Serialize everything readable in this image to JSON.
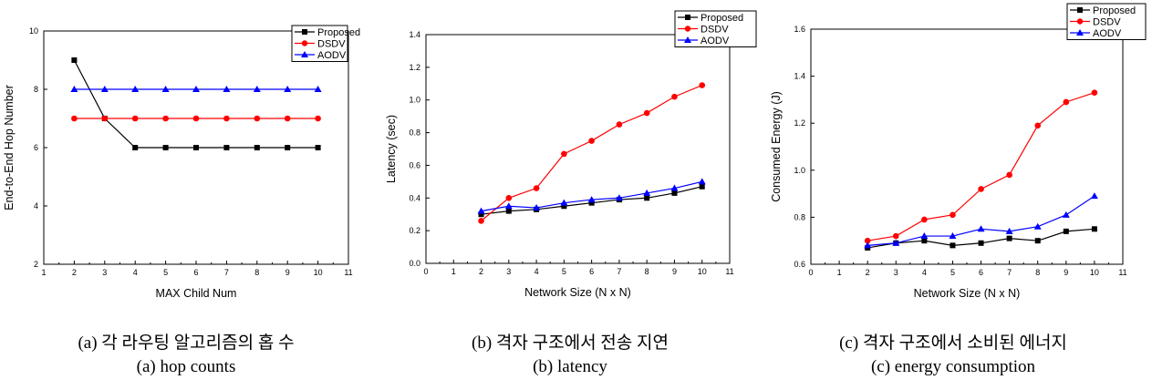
{
  "chart_data": [
    {
      "type": "line",
      "xlabel": "MAX Child Num",
      "ylabel": "End-to-End Hop Number",
      "xlim": [
        1,
        11
      ],
      "ylim": [
        2,
        10
      ],
      "x_ticks": [
        "1",
        "2",
        "3",
        "4",
        "5",
        "6",
        "7",
        "8",
        "9",
        "10",
        "11"
      ],
      "y_ticks": [
        "2",
        "4",
        "6",
        "8",
        "10"
      ],
      "legend_position": "top-right",
      "x": [
        2,
        3,
        4,
        5,
        6,
        7,
        8,
        9,
        10
      ],
      "series": [
        {
          "name": "Proposed",
          "color": "#000000",
          "marker": "square",
          "values": [
            9,
            7,
            6,
            6,
            6,
            6,
            6,
            6,
            6
          ]
        },
        {
          "name": "DSDV",
          "color": "#ff0000",
          "marker": "circle",
          "values": [
            7,
            7,
            7,
            7,
            7,
            7,
            7,
            7,
            7
          ]
        },
        {
          "name": "AODV",
          "color": "#0000ff",
          "marker": "triangle",
          "values": [
            8,
            8,
            8,
            8,
            8,
            8,
            8,
            8,
            8
          ]
        }
      ]
    },
    {
      "type": "line",
      "xlabel": "Network Size (N x N)",
      "ylabel": "Latency (sec)",
      "xlim": [
        0,
        11
      ],
      "ylim": [
        0,
        1.4
      ],
      "x_ticks": [
        "0",
        "1",
        "2",
        "3",
        "4",
        "5",
        "6",
        "7",
        "8",
        "9",
        "10",
        "11"
      ],
      "y_ticks": [
        "0.0",
        "0.2",
        "0.4",
        "0.6",
        "0.8",
        "1.0",
        "1.2",
        "1.4"
      ],
      "legend_position": "top-right",
      "x": [
        2,
        3,
        4,
        5,
        6,
        7,
        8,
        9,
        10
      ],
      "series": [
        {
          "name": "Proposed",
          "color": "#000000",
          "marker": "square",
          "values": [
            0.3,
            0.32,
            0.33,
            0.35,
            0.37,
            0.39,
            0.4,
            0.43,
            0.47
          ]
        },
        {
          "name": "DSDV",
          "color": "#ff0000",
          "marker": "circle",
          "values": [
            0.26,
            0.4,
            0.46,
            0.67,
            0.75,
            0.85,
            0.92,
            1.02,
            1.09
          ]
        },
        {
          "name": "AODV",
          "color": "#0000ff",
          "marker": "triangle",
          "values": [
            0.32,
            0.35,
            0.34,
            0.37,
            0.39,
            0.4,
            0.43,
            0.46,
            0.5
          ]
        }
      ]
    },
    {
      "type": "line",
      "xlabel": "Network Size (N x N)",
      "ylabel": "Consumed Energy (J)",
      "xlim": [
        0,
        11
      ],
      "ylim": [
        0.6,
        1.6
      ],
      "x_ticks": [
        "0",
        "1",
        "2",
        "3",
        "4",
        "5",
        "6",
        "7",
        "8",
        "9",
        "10",
        "11"
      ],
      "y_ticks": [
        "0.6",
        "0.8",
        "1.0",
        "1.2",
        "1.4",
        "1.6"
      ],
      "legend_position": "top-right",
      "x": [
        2,
        3,
        4,
        5,
        6,
        7,
        8,
        9,
        10
      ],
      "series": [
        {
          "name": "Proposed",
          "color": "#000000",
          "marker": "square",
          "values": [
            0.67,
            0.69,
            0.7,
            0.68,
            0.69,
            0.71,
            0.7,
            0.74,
            0.75
          ]
        },
        {
          "name": "DSDV",
          "color": "#ff0000",
          "marker": "circle",
          "values": [
            0.7,
            0.72,
            0.79,
            0.81,
            0.92,
            0.98,
            1.19,
            1.29,
            1.33
          ]
        },
        {
          "name": "AODV",
          "color": "#0000ff",
          "marker": "triangle",
          "values": [
            0.68,
            0.69,
            0.72,
            0.72,
            0.75,
            0.74,
            0.76,
            0.81,
            0.89
          ]
        }
      ]
    }
  ],
  "captions": [
    {
      "korean": "(a) 각 라우팅 알고리즘의 홉 수",
      "english": "(a) hop counts"
    },
    {
      "korean": "(b) 격자 구조에서 전송 지연",
      "english": "(b) latency"
    },
    {
      "korean": "(c) 격자 구조에서 소비된 에너지",
      "english": "(c) energy consumption"
    }
  ]
}
